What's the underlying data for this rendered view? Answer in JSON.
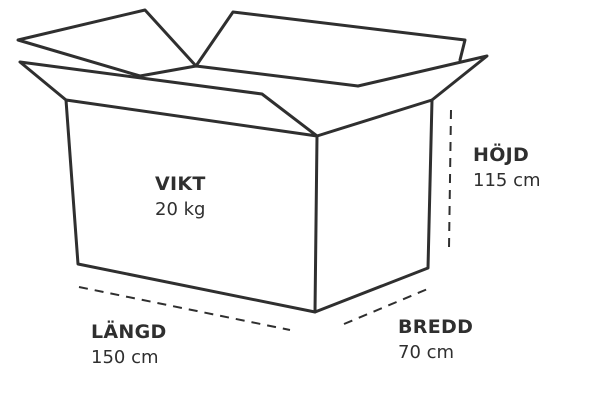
{
  "labels": {
    "weight": {
      "name": "VIKT",
      "value": "20 kg"
    },
    "height": {
      "name": "HÖJD",
      "value": "115 cm"
    },
    "length": {
      "name": "LÄNGD",
      "value": "150 cm"
    },
    "width": {
      "name": "BREDD",
      "value": "70 cm"
    }
  },
  "colors": {
    "stroke": "#2f2f2f",
    "background": "#ffffff"
  }
}
